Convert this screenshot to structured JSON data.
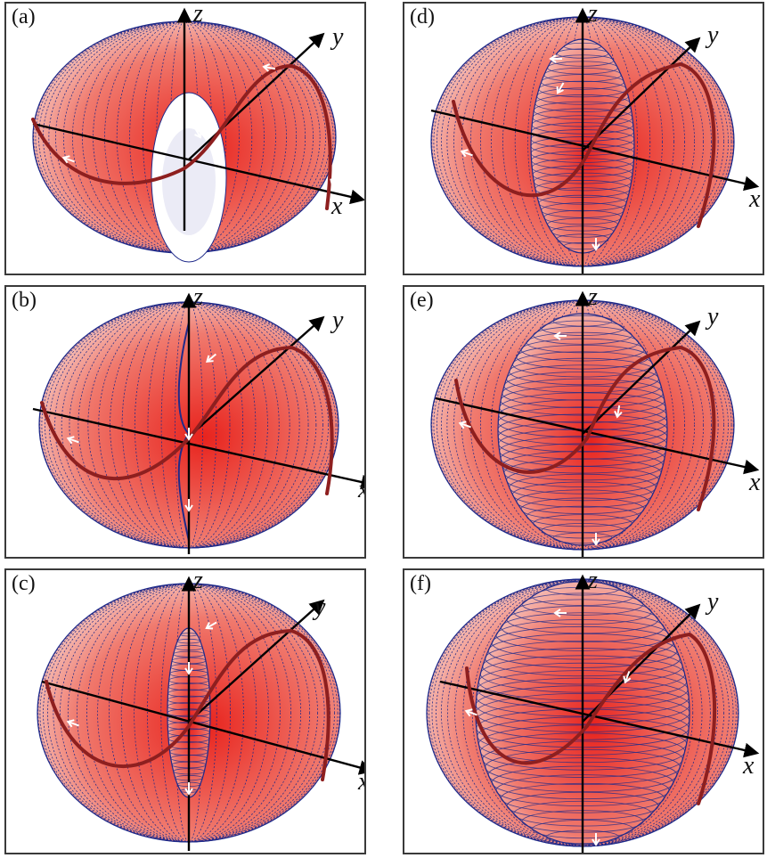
{
  "panels": [
    {
      "label": "(a)",
      "shape": "torus"
    },
    {
      "label": "(b)",
      "shape": "horn"
    },
    {
      "label": "(c)",
      "shape": "spindle-small"
    },
    {
      "label": "(d)",
      "shape": "spindle-medium"
    },
    {
      "label": "(e)",
      "shape": "spindle-large"
    },
    {
      "label": "(f)",
      "shape": "sphere"
    }
  ],
  "axes": {
    "x": "x",
    "y": "y",
    "z": "z"
  },
  "colors": {
    "surface_core": "#e8231d",
    "surface_edge": "#f6c7bf",
    "mesh_lines": "#1f2a8a",
    "trajectory": "#8e1f1f",
    "arrows": "#ffffff",
    "axis": "#000000",
    "frame": "#3a3a3a"
  }
}
